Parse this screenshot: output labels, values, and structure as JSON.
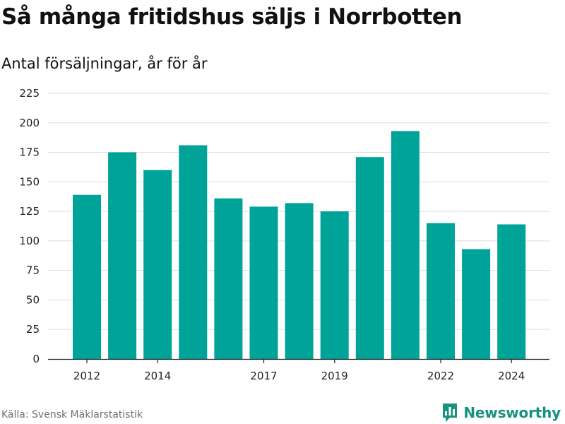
{
  "header": {
    "title": "Så många fritidshus säljs i Norrbotten",
    "subtitle": "Antal försäljningar, år för år"
  },
  "footer": {
    "source": "Källa: Svensk Mäklarstatistik",
    "brand": "Newsworthy",
    "brand_icon": "bar-chart-logo-icon"
  },
  "colors": {
    "bar": "#00a398",
    "brand": "#17927f",
    "grid": "#dddddd",
    "axis": "#222222"
  },
  "chart_data": {
    "type": "bar",
    "title": "Så många fritidshus säljs i Norrbotten",
    "subtitle": "Antal försäljningar, år för år",
    "categories": [
      "2012",
      "2013",
      "2014",
      "2015",
      "2016",
      "2017",
      "2018",
      "2019",
      "2020",
      "2021",
      "2022",
      "2023",
      "2024"
    ],
    "values": [
      139,
      175,
      160,
      181,
      136,
      129,
      132,
      125,
      171,
      193,
      115,
      93,
      114
    ],
    "x_tick_labels": [
      "2012",
      "2014",
      "2017",
      "2019",
      "2022",
      "2024"
    ],
    "y_ticks": [
      0,
      25,
      50,
      75,
      100,
      125,
      150,
      175,
      200,
      225
    ],
    "ylim": [
      0,
      225
    ],
    "xlabel": "",
    "ylabel": "",
    "grid": true,
    "legend": "none",
    "source": "Källa: Svensk Mäklarstatistik"
  }
}
